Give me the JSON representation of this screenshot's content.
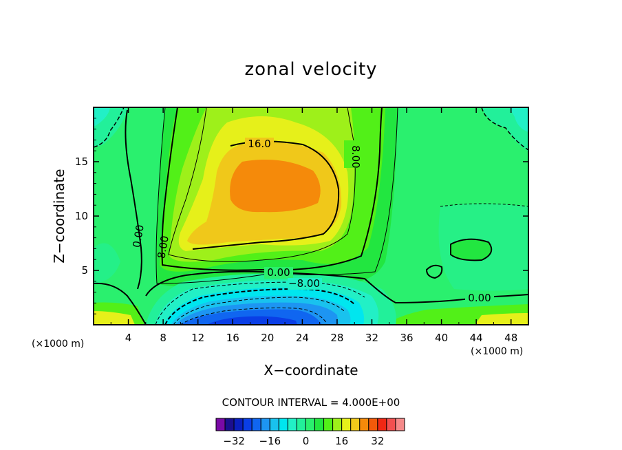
{
  "chart_data": {
    "type": "heatmap",
    "title": "zonal velocity",
    "xlabel": "X−coordinate",
    "ylabel": "Z−coordinate",
    "x_unit_left": "(×1000 m)",
    "x_unit_right": "(×1000 m)",
    "xlim": [
      0,
      50
    ],
    "ylim": [
      0,
      20
    ],
    "x_ticks": [
      "4",
      "8",
      "12",
      "16",
      "20",
      "24",
      "28",
      "32",
      "36",
      "40",
      "44",
      "48"
    ],
    "y_ticks": [
      "5",
      "10",
      "15"
    ],
    "contour_interval_label": "CONTOUR INTERVAL = 4.000E+00",
    "contour_interval": 4,
    "contour_labels": [
      "16.0",
      "8.00",
      "8.00",
      "0.00",
      "0.00",
      "0.00",
      "−8.00"
    ],
    "colorbar": {
      "tick_labels": [
        "−32",
        "−16",
        "0",
        "16",
        "32"
      ],
      "levels": [
        -36,
        -32,
        -28,
        -24,
        -20,
        -16,
        -12,
        -8,
        -4,
        0,
        4,
        8,
        12,
        16,
        20,
        24,
        28,
        32,
        36
      ],
      "colors": [
        "#7a0aa6",
        "#1b0f8f",
        "#0a1fbf",
        "#0a3ee6",
        "#1066f0",
        "#1d95f2",
        "#19c2ee",
        "#00e6ef",
        "#22f0c6",
        "#22f09a",
        "#2af06e",
        "#22e640",
        "#52f018",
        "#9ef01a",
        "#e6f01a",
        "#f0c81a",
        "#f58a0a",
        "#f25a0a",
        "#f02814",
        "#f25050",
        "#f58a8a"
      ]
    },
    "features": [
      {
        "name": "jet core maximum",
        "x": 21,
        "z": 12.5,
        "value": 26
      },
      {
        "name": "surface minimum",
        "x": 20,
        "z": 0.5,
        "value": -24
      }
    ]
  }
}
